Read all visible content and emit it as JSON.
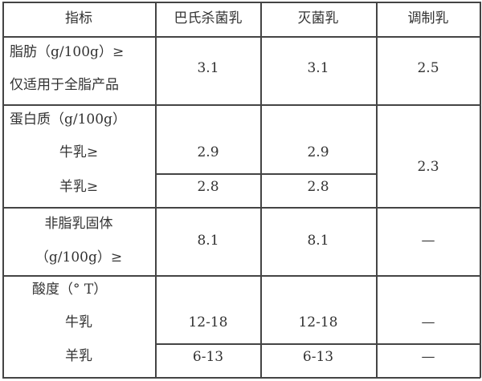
{
  "headers": [
    "指标",
    "巴氏杀菌乳",
    "灭菌乳",
    "调制乳"
  ],
  "rows": {
    "fat": {
      "label_1": "脂肪（g/100g）≥",
      "label_2": "仅适用于全脂产品",
      "pasteurized": "3.1",
      "sterilized": "3.1",
      "modified": "2.5"
    },
    "protein": {
      "label": "蛋白质（g/100g）",
      "cow_label": "牛乳≥",
      "goat_label": "羊乳≥",
      "pasteurized_cow": "2.9",
      "sterilized_cow": "2.9",
      "pasteurized_goat": "2.8",
      "sterilized_goat": "2.8",
      "modified": "2.3"
    },
    "nonfat_solids": {
      "label_1": "非脂乳固体",
      "label_2": "（g/100g）≥",
      "pasteurized": "8.1",
      "sterilized": "8.1",
      "modified": "—"
    },
    "acidity": {
      "label": "酸度（° T）",
      "cow_label": "牛乳",
      "goat_label": "羊乳",
      "pasteurized_cow": "12-18",
      "sterilized_cow": "12-18",
      "modified_cow": "—",
      "pasteurized_goat": "6-13",
      "sterilized_goat": "6-13",
      "modified_goat": "—"
    }
  }
}
